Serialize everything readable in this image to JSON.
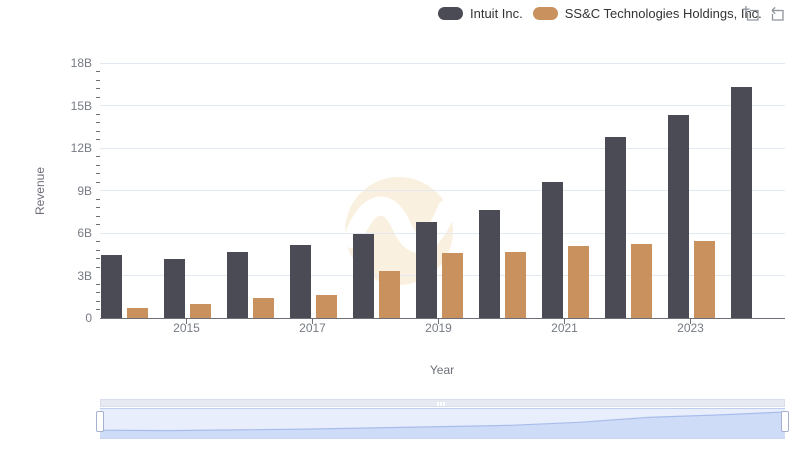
{
  "legend": {
    "items": [
      {
        "label": "Intuit Inc.",
        "color": "#4a4b55"
      },
      {
        "label": "SS&C Technologies Holdings, Inc.",
        "color": "#c9915e"
      }
    ]
  },
  "toolbar": {
    "zoom_icon": "box-zoom-icon",
    "restore_icon": "restore-zoom-icon",
    "icon_color": "#8f959e"
  },
  "watermark": {
    "shape": "circle-wave-logo",
    "circle_color": "#faf0e0",
    "wave_color": "#ffffff"
  },
  "chart_data": {
    "type": "bar",
    "title": "",
    "xlabel": "Year",
    "ylabel": "Revenue",
    "ylim": [
      0,
      18
    ],
    "unit": "B",
    "grid": true,
    "legend_position": "top",
    "categories": [
      2014,
      2015,
      2016,
      2017,
      2018,
      2019,
      2020,
      2021,
      2022,
      2023,
      2024
    ],
    "series": [
      {
        "name": "Intuit Inc.",
        "color": "#4a4b55",
        "values": [
          4.45,
          4.2,
          4.65,
          5.15,
          5.95,
          6.8,
          7.65,
          9.6,
          12.75,
          14.35,
          16.3
        ]
      },
      {
        "name": "SS&C Technologies Holdings, Inc.",
        "color": "#c9915e",
        "values": [
          0.7,
          1.0,
          1.4,
          1.65,
          3.35,
          4.6,
          4.65,
          5.05,
          5.25,
          5.45,
          null
        ]
      }
    ],
    "yticks": {
      "values": [
        0,
        3,
        6,
        9,
        12,
        15,
        18
      ],
      "labels": [
        "0",
        "3B",
        "6B",
        "9B",
        "12B",
        "15B",
        "18B"
      ]
    },
    "xticks": {
      "values": [
        2015,
        2017,
        2019,
        2021,
        2023
      ],
      "labels": [
        "2015",
        "2017",
        "2019",
        "2021",
        "2023"
      ]
    },
    "navigator": {
      "shows": "Intuit Inc.",
      "bg": "#e9eefc",
      "fill": "#cfdcf8",
      "line": "#a9bdec"
    }
  },
  "colors": {
    "gridline": "#e3e9f1",
    "axis_line": "#6e7079",
    "tick_label": "#767b84",
    "axis_title": "#6e7079",
    "legend_text": "#333333"
  }
}
